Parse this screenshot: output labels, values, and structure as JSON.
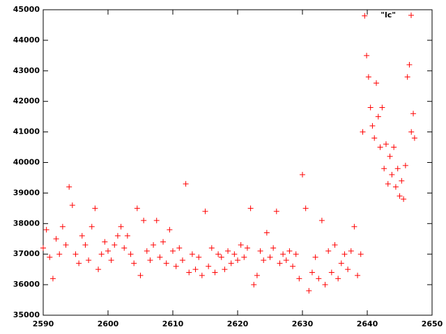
{
  "chart_data": {
    "type": "scatter",
    "xlim": [
      2590,
      2650
    ],
    "xticks": [
      2590,
      2600,
      2610,
      2620,
      2630,
      2640,
      2650
    ],
    "ylim": [
      35000,
      45000
    ],
    "yticks": [
      35000,
      36000,
      37000,
      38000,
      39000,
      40000,
      41000,
      42000,
      43000,
      44000,
      45000
    ],
    "legend": "upper right",
    "grid": false,
    "x": [
      2590,
      2590.5,
      2591,
      2591.5,
      2592,
      2592.5,
      2593,
      2593.5,
      2594,
      2594.5,
      2595,
      2595.5,
      2596,
      2596.5,
      2597,
      2597.5,
      2598,
      2598.5,
      2599,
      2599.5,
      2600,
      2600.5,
      2601,
      2601.5,
      2602,
      2602.5,
      2603,
      2603.5,
      2604,
      2604.5,
      2605,
      2605.5,
      2606,
      2606.5,
      2607,
      2607.5,
      2608,
      2608.5,
      2609,
      2609.5,
      2610,
      2610.5,
      2611,
      2611.5,
      2612,
      2612.5,
      2613,
      2613.5,
      2614,
      2614.5,
      2615,
      2615.5,
      2616,
      2616.5,
      2617,
      2617.5,
      2618,
      2618.5,
      2619,
      2619.5,
      2620,
      2620.5,
      2621,
      2621.5,
      2622,
      2622.5,
      2623,
      2623.5,
      2624,
      2624.5,
      2625,
      2625.5,
      2626,
      2626.5,
      2627,
      2627.5,
      2628,
      2628.5,
      2629,
      2629.5,
      2630,
      2630.5,
      2631,
      2631.5,
      2632,
      2632.5,
      2633,
      2633.5,
      2634,
      2634.5,
      2635,
      2635.5,
      2636,
      2636.5,
      2637,
      2637.5,
      2638,
      2638.5,
      2639,
      2639.3,
      2639.6,
      2639.9,
      2640.2,
      2640.5,
      2640.8,
      2641.1,
      2641.4,
      2641.7,
      2642,
      2642.3,
      2642.6,
      2642.9,
      2643.2,
      2643.5,
      2643.8,
      2644.1,
      2644.4,
      2644.7,
      2645,
      2645.3,
      2645.6,
      2645.9,
      2646.2,
      2646.5,
      2646.8,
      2647.1,
      2647.3
    ],
    "series": [
      {
        "name": "\"lc\"",
        "color": "#ff0000",
        "values": [
          37200,
          37800,
          36900,
          36200,
          37500,
          37000,
          37900,
          37300,
          39200,
          38600,
          37000,
          36700,
          37600,
          37300,
          36800,
          37900,
          38500,
          36500,
          37000,
          37400,
          37100,
          36800,
          37300,
          37600,
          37900,
          37200,
          37600,
          37000,
          36700,
          38500,
          36300,
          38100,
          37100,
          36800,
          37300,
          38100,
          36900,
          37400,
          36700,
          37800,
          37100,
          36600,
          37200,
          36800,
          39300,
          36400,
          37000,
          36500,
          36900,
          36300,
          38400,
          36600,
          37200,
          36400,
          37000,
          36900,
          36500,
          37100,
          36700,
          37000,
          36800,
          37300,
          36900,
          37200,
          38500,
          36000,
          36300,
          37100,
          36800,
          37700,
          36900,
          37200,
          38400,
          36700,
          37000,
          36800,
          37100,
          36600,
          37000,
          36200,
          39600,
          38500,
          35800,
          36400,
          36900,
          36200,
          38100,
          36000,
          37100,
          36400,
          37300,
          36200,
          36700,
          37000,
          36500,
          37100,
          37900,
          36300,
          37000,
          41000,
          44800,
          43500,
          42800,
          41800,
          41200,
          40800,
          42600,
          41500,
          40500,
          41800,
          39800,
          40600,
          39300,
          40200,
          39600,
          40500,
          39200,
          39800,
          38900,
          39400,
          38800,
          39900,
          42800,
          43200,
          41000,
          41600,
          40800
        ]
      }
    ]
  }
}
